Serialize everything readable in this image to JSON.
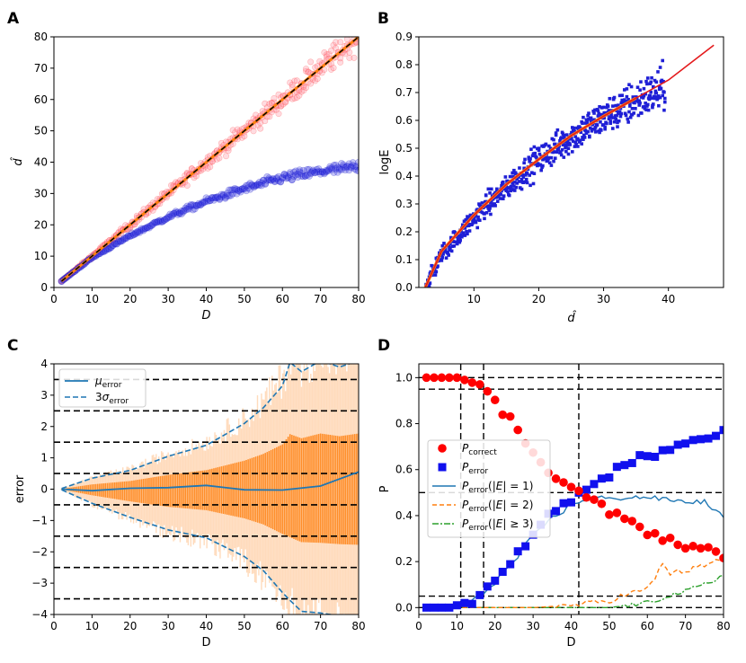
{
  "colors": {
    "red_fit": "#e41a1c",
    "blue_pts": "#1f1fd6",
    "orange": "#ff7f0e",
    "mpl_blue": "#1f77b4",
    "green": "#2ca02c",
    "black": "#000000",
    "red_pts": "#ff0000",
    "pink": "#ff9aa8"
  },
  "chart_data": [
    {
      "panel": "A",
      "type": "scatter",
      "xlabel": "D",
      "ylabel": "d̂",
      "xlim": [
        0,
        80
      ],
      "ylim": [
        0,
        80
      ],
      "xticks": [
        0,
        10,
        20,
        30,
        40,
        50,
        60,
        70,
        80
      ],
      "yticks": [
        0,
        10,
        20,
        30,
        40,
        50,
        60,
        70,
        80
      ],
      "series": [
        {
          "name": "upper band (pink/red)",
          "relation": "d̂ ≈ D",
          "x_range": [
            2,
            80
          ]
        },
        {
          "name": "lower band (blue)",
          "points": [
            [
              2,
              2
            ],
            [
              10,
              9.5
            ],
            [
              20,
              16.5
            ],
            [
              30,
              22.5
            ],
            [
              40,
              27.5
            ],
            [
              50,
              31.5
            ],
            [
              60,
              35
            ],
            [
              70,
              37
            ],
            [
              80,
              38.5
            ]
          ]
        },
        {
          "name": "reference line (orange, dashed black)",
          "points": [
            [
              2,
              2
            ],
            [
              80,
              80
            ]
          ]
        }
      ]
    },
    {
      "panel": "B",
      "type": "scatter",
      "xlabel": "d̂",
      "ylabel": "logE",
      "xlim": [
        1.5,
        48.5
      ],
      "ylim": [
        0,
        0.9
      ],
      "xticks": [
        10,
        20,
        30,
        40
      ],
      "yticks": [
        0.0,
        0.1,
        0.2,
        0.3,
        0.4,
        0.5,
        0.6,
        0.7,
        0.8,
        0.9
      ],
      "series": [
        {
          "name": "samples (blue)",
          "points": [
            [
              2.5,
              0.0
            ],
            [
              5,
              0.12
            ],
            [
              10,
              0.25
            ],
            [
              15,
              0.36
            ],
            [
              20,
              0.46
            ],
            [
              25,
              0.54
            ],
            [
              30,
              0.61
            ],
            [
              35,
              0.67
            ],
            [
              39,
              0.71
            ]
          ]
        },
        {
          "name": "fit (red)",
          "points": [
            [
              2.5,
              0.0
            ],
            [
              5,
              0.13
            ],
            [
              10,
              0.26
            ],
            [
              15,
              0.37
            ],
            [
              20,
              0.46
            ],
            [
              25,
              0.545
            ],
            [
              30,
              0.615
            ],
            [
              35,
              0.68
            ],
            [
              40,
              0.745
            ],
            [
              47,
              0.87
            ]
          ]
        },
        {
          "name": "mean (orange)",
          "x_range": [
            2.5,
            39
          ]
        }
      ]
    },
    {
      "panel": "C",
      "type": "line",
      "xlabel": "D",
      "ylabel": "error",
      "xlim": [
        0,
        80
      ],
      "ylim": [
        -4,
        4
      ],
      "xticks": [
        0,
        10,
        20,
        30,
        40,
        50,
        60,
        70,
        80
      ],
      "yticks": [
        -4,
        -3,
        -2,
        -1,
        0,
        1,
        2,
        3,
        4
      ],
      "hlines": [
        -3.5,
        -2.5,
        -1.5,
        -0.5,
        0.5,
        1.5,
        2.5,
        3.5
      ],
      "legend": [
        "μerror",
        "3σerror"
      ],
      "series": [
        {
          "name": "μerror",
          "points": [
            [
              2,
              0
            ],
            [
              10,
              -0.05
            ],
            [
              20,
              0.03
            ],
            [
              30,
              0.05
            ],
            [
              40,
              0.12
            ],
            [
              50,
              -0.02
            ],
            [
              60,
              -0.03
            ],
            [
              70,
              0.1
            ],
            [
              80,
              0.55
            ]
          ]
        },
        {
          "name": "3σerror upper",
          "points": [
            [
              2,
              0.02
            ],
            [
              10,
              0.35
            ],
            [
              20,
              0.6
            ],
            [
              30,
              1.05
            ],
            [
              40,
              1.4
            ],
            [
              50,
              2.1
            ],
            [
              55,
              2.6
            ],
            [
              60,
              3.3
            ],
            [
              62,
              4.05
            ],
            [
              65,
              3.75
            ],
            [
              70,
              4.1
            ],
            [
              75,
              3.9
            ],
            [
              80,
              4.1
            ]
          ]
        },
        {
          "name": "3σerror lower",
          "points": [
            [
              2,
              -0.02
            ],
            [
              10,
              -0.45
            ],
            [
              20,
              -0.9
            ],
            [
              30,
              -1.3
            ],
            [
              40,
              -1.55
            ],
            [
              50,
              -2.15
            ],
            [
              55,
              -2.6
            ],
            [
              60,
              -3.3
            ],
            [
              62,
              -3.55
            ],
            [
              65,
              -3.9
            ],
            [
              70,
              -3.95
            ],
            [
              75,
              -4.05
            ],
            [
              80,
              -4.1
            ]
          ]
        }
      ]
    },
    {
      "panel": "D",
      "type": "scatter",
      "xlabel": "D",
      "ylabel": "P",
      "xlim": [
        0,
        80
      ],
      "ylim": [
        -0.03,
        1.06
      ],
      "xticks": [
        0,
        10,
        20,
        30,
        40,
        50,
        60,
        70,
        80
      ],
      "yticks": [
        0.0,
        0.2,
        0.4,
        0.6,
        0.8,
        1.0
      ],
      "hlines": [
        1.0,
        0.95,
        0.5,
        0.05,
        0.0
      ],
      "vlines": [
        11,
        17,
        42
      ],
      "legend": [
        "Pcorrect",
        "Perror",
        "Perror(|E| = 1)",
        "Perror(|E| = 2)",
        "Perror(|E| ≥ 3)"
      ],
      "series": [
        {
          "name": "Pcorrect",
          "points": [
            [
              2,
              1.0
            ],
            [
              4,
              1.0
            ],
            [
              6,
              1.0
            ],
            [
              8,
              1.0
            ],
            [
              10,
              1.0
            ],
            [
              12,
              0.99
            ],
            [
              14,
              0.98
            ],
            [
              16,
              0.96
            ],
            [
              18,
              0.93
            ],
            [
              20,
              0.9
            ],
            [
              22,
              0.85
            ],
            [
              24,
              0.82
            ],
            [
              26,
              0.77
            ],
            [
              28,
              0.72
            ],
            [
              30,
              0.68
            ],
            [
              32,
              0.64
            ],
            [
              34,
              0.6
            ],
            [
              36,
              0.57
            ],
            [
              38,
              0.54
            ],
            [
              40,
              0.52
            ],
            [
              42,
              0.5
            ],
            [
              44,
              0.49
            ],
            [
              46,
              0.47
            ],
            [
              48,
              0.44
            ],
            [
              50,
              0.41
            ],
            [
              52,
              0.4
            ],
            [
              54,
              0.39
            ],
            [
              56,
              0.37
            ],
            [
              58,
              0.35
            ],
            [
              60,
              0.33
            ],
            [
              62,
              0.31
            ],
            [
              64,
              0.3
            ],
            [
              66,
              0.29
            ],
            [
              68,
              0.28
            ],
            [
              70,
              0.27
            ],
            [
              72,
              0.26
            ],
            [
              74,
              0.25
            ],
            [
              76,
              0.25
            ],
            [
              78,
              0.24
            ],
            [
              80,
              0.23
            ]
          ]
        },
        {
          "name": "Perror",
          "points": [
            [
              2,
              0.0
            ],
            [
              4,
              0.0
            ],
            [
              6,
              0.0
            ],
            [
              8,
              0.0
            ],
            [
              10,
              0.01
            ],
            [
              12,
              0.02
            ],
            [
              14,
              0.03
            ],
            [
              16,
              0.05
            ],
            [
              18,
              0.08
            ],
            [
              20,
              0.11
            ],
            [
              22,
              0.15
            ],
            [
              24,
              0.18
            ],
            [
              26,
              0.23
            ],
            [
              28,
              0.28
            ],
            [
              30,
              0.33
            ],
            [
              32,
              0.36
            ],
            [
              34,
              0.4
            ],
            [
              36,
              0.43
            ],
            [
              38,
              0.44
            ],
            [
              40,
              0.47
            ],
            [
              42,
              0.5
            ],
            [
              44,
              0.51
            ],
            [
              46,
              0.53
            ],
            [
              48,
              0.56
            ],
            [
              50,
              0.58
            ],
            [
              52,
              0.6
            ],
            [
              54,
              0.61
            ],
            [
              56,
              0.63
            ],
            [
              58,
              0.65
            ],
            [
              60,
              0.66
            ],
            [
              62,
              0.67
            ],
            [
              64,
              0.69
            ],
            [
              66,
              0.7
            ],
            [
              68,
              0.71
            ],
            [
              70,
              0.72
            ],
            [
              72,
              0.73
            ],
            [
              74,
              0.74
            ],
            [
              76,
              0.75
            ],
            [
              78,
              0.76
            ],
            [
              80,
              0.77
            ]
          ]
        },
        {
          "name": "Perror(|E| = 1)",
          "points": [
            [
              2,
              0.0
            ],
            [
              8,
              0.0
            ],
            [
              10,
              0.01
            ],
            [
              12,
              0.02
            ],
            [
              14,
              0.03
            ],
            [
              16,
              0.05
            ],
            [
              18,
              0.08
            ],
            [
              20,
              0.11
            ],
            [
              22,
              0.15
            ],
            [
              24,
              0.18
            ],
            [
              26,
              0.22
            ],
            [
              28,
              0.27
            ],
            [
              30,
              0.31
            ],
            [
              32,
              0.34
            ],
            [
              34,
              0.38
            ],
            [
              36,
              0.4
            ],
            [
              38,
              0.42
            ],
            [
              40,
              0.45
            ],
            [
              42,
              0.46
            ],
            [
              44,
              0.47
            ],
            [
              46,
              0.48
            ],
            [
              48,
              0.48
            ],
            [
              50,
              0.47
            ],
            [
              55,
              0.48
            ],
            [
              60,
              0.48
            ],
            [
              65,
              0.47
            ],
            [
              70,
              0.46
            ],
            [
              75,
              0.46
            ],
            [
              78,
              0.42
            ],
            [
              80,
              0.39
            ]
          ]
        },
        {
          "name": "Perror(|E| = 2)",
          "points": [
            [
              2,
              0.0
            ],
            [
              30,
              0.0
            ],
            [
              40,
              0.01
            ],
            [
              45,
              0.02
            ],
            [
              50,
              0.03
            ],
            [
              55,
              0.06
            ],
            [
              60,
              0.08
            ],
            [
              62,
              0.13
            ],
            [
              64,
              0.19
            ],
            [
              66,
              0.15
            ],
            [
              70,
              0.16
            ],
            [
              75,
              0.18
            ],
            [
              80,
              0.22
            ]
          ]
        },
        {
          "name": "Perror(|E| ≥ 3)",
          "points": [
            [
              2,
              0.0
            ],
            [
              50,
              0.0
            ],
            [
              55,
              0.01
            ],
            [
              60,
              0.02
            ],
            [
              62,
              0.03
            ],
            [
              65,
              0.05
            ],
            [
              70,
              0.07
            ],
            [
              75,
              0.1
            ],
            [
              78,
              0.12
            ],
            [
              80,
              0.15
            ]
          ]
        }
      ]
    }
  ]
}
